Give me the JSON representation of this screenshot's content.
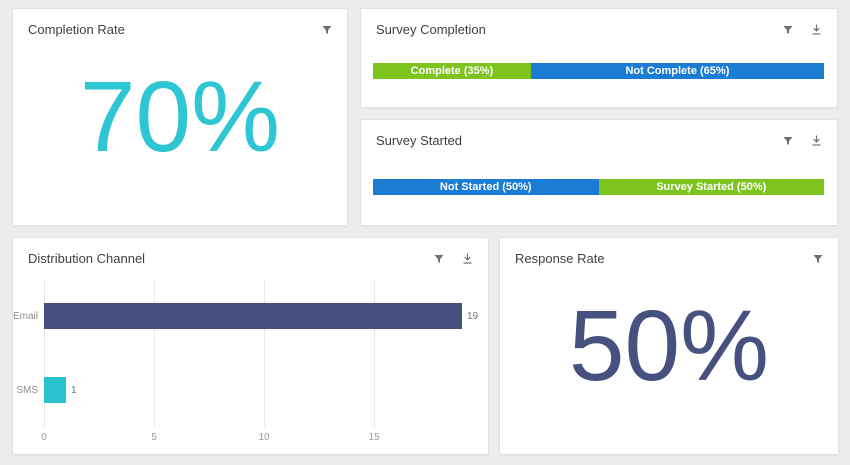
{
  "page": {
    "background": "#ececec"
  },
  "cards": {
    "completion_rate": {
      "title": "Completion Rate",
      "value": "70%",
      "value_color": "#2ec6d2",
      "icons": [
        "filter"
      ]
    },
    "response_rate": {
      "title": "Response Rate",
      "value": "50%",
      "value_color": "#47517f",
      "icons": [
        "filter"
      ]
    }
  },
  "chart_data": [
    {
      "type": "bar",
      "title": "Survey Completion",
      "orientation": "horizontal",
      "stacked": true,
      "unit": "percent",
      "series": [
        {
          "name": "Complete",
          "values": [
            35
          ],
          "label": "Complete (35%)",
          "color": "#7ec41f"
        },
        {
          "name": "Not Complete",
          "values": [
            65
          ],
          "label": "Not Complete (65%)",
          "color": "#1b7cd3"
        }
      ],
      "icons": [
        "filter",
        "download"
      ]
    },
    {
      "type": "bar",
      "title": "Survey Started",
      "orientation": "horizontal",
      "stacked": true,
      "unit": "percent",
      "series": [
        {
          "name": "Not Started",
          "values": [
            50
          ],
          "label": "Not Started (50%)",
          "color": "#1b7cd3"
        },
        {
          "name": "Survey Started",
          "values": [
            50
          ],
          "label": "Survey Started (50%)",
          "color": "#7ec41f"
        }
      ],
      "icons": [
        "filter",
        "download"
      ]
    },
    {
      "type": "bar",
      "title": "Distribution Channel",
      "orientation": "horizontal",
      "categories": [
        "Email",
        "SMS"
      ],
      "values": [
        19,
        1
      ],
      "value_labels": [
        "19",
        "1"
      ],
      "colors": [
        "#454e7c",
        "#2bc4ce"
      ],
      "x_ticks": [
        0,
        5,
        10,
        15
      ],
      "x_max": 19.5,
      "grid": true,
      "legend": false,
      "icons": [
        "filter",
        "download"
      ]
    }
  ]
}
